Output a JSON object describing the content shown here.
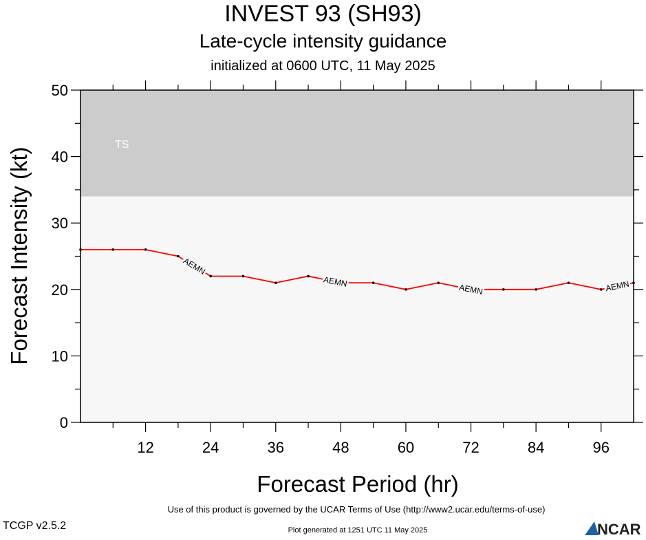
{
  "header": {
    "title": "INVEST 93 (SH93)",
    "subtitle": "Late-cycle intensity guidance",
    "initialized": "initialized at 0600 UTC, 11 May 2025"
  },
  "footer": {
    "terms": "Use of this product is governed by the UCAR Terms of Use (http://www2.ucar.edu/terms-of-use)",
    "version": "TCGP v2.5.2",
    "generated": "Plot generated at 1251 UTC   11 May 2025",
    "logo_text": "NCAR"
  },
  "colors": {
    "ts_band": "#cccccc",
    "plot_bg": "#f7f7f7",
    "line": "#ff0000",
    "marker": "#000000"
  },
  "chart_data": {
    "type": "line",
    "xlabel": "Forecast Period (hr)",
    "ylabel": "Forecast Intensity (kt)",
    "xlim": [
      0,
      102
    ],
    "ylim": [
      0,
      50
    ],
    "xticks": [
      12,
      24,
      36,
      48,
      60,
      72,
      84,
      96
    ],
    "yticks": [
      0,
      10,
      20,
      30,
      40,
      50
    ],
    "grid": false,
    "bands": [
      {
        "label": "TS",
        "y0": 34,
        "y1": 50
      }
    ],
    "series": [
      {
        "name": "AEMN",
        "x": [
          0,
          6,
          12,
          18,
          24,
          30,
          36,
          42,
          48,
          54,
          60,
          66,
          72,
          78,
          84,
          90,
          96,
          102
        ],
        "y": [
          26,
          26,
          26,
          25,
          22,
          22,
          21,
          22,
          21,
          21,
          20,
          21,
          20,
          20,
          20,
          21,
          20,
          21
        ],
        "label_positions": [
          21,
          47,
          72,
          99
        ]
      }
    ]
  }
}
